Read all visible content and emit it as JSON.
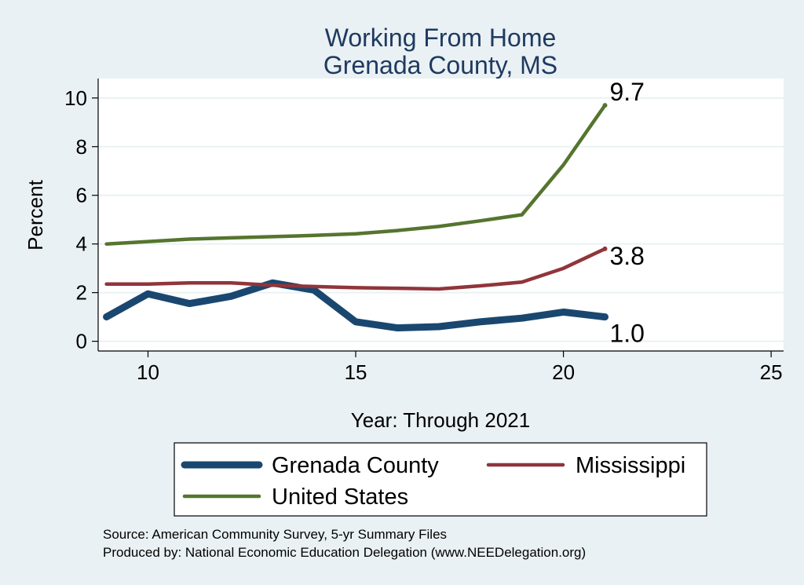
{
  "chart_data": {
    "type": "line",
    "title": [
      "Working From Home",
      "Grenada County, MS"
    ],
    "xlabel": "Year: Through 2021",
    "ylabel": "Percent",
    "xlim": [
      8.8,
      25.3
    ],
    "ylim": [
      -0.4,
      10.8
    ],
    "xticks": [
      10,
      15,
      20,
      25
    ],
    "yticks": [
      0,
      2,
      4,
      6,
      8,
      10
    ],
    "grid": true,
    "x": [
      9,
      10,
      11,
      12,
      13,
      14,
      15,
      16,
      17,
      18,
      19,
      20,
      21
    ],
    "series": [
      {
        "name": "Grenada County",
        "color": "#1a476f",
        "values": [
          1.0,
          1.95,
          1.55,
          1.85,
          2.4,
          2.1,
          0.8,
          0.55,
          0.6,
          0.8,
          0.95,
          1.2,
          1.0
        ],
        "end_label": "1.0"
      },
      {
        "name": "Mississippi",
        "color": "#90353b",
        "values": [
          2.35,
          2.35,
          2.4,
          2.4,
          2.3,
          2.25,
          2.2,
          2.18,
          2.15,
          2.28,
          2.43,
          3.0,
          3.8
        ],
        "end_label": "3.8"
      },
      {
        "name": "United States",
        "color": "#55752f",
        "values": [
          4.0,
          4.1,
          4.2,
          4.25,
          4.3,
          4.35,
          4.42,
          4.55,
          4.72,
          4.95,
          5.2,
          7.25,
          9.7
        ],
        "end_label": "9.7"
      }
    ],
    "legend": {
      "position": "bottom",
      "items": [
        "Grenada County",
        "Mississippi",
        "United States"
      ]
    },
    "notes": [
      "Source: American Community Survey, 5-yr Summary Files",
      "Produced by: National Economic Education Delegation (www.NEEDelegation.org)"
    ],
    "colors": {
      "background": "#eaf1f4",
      "plot_background": "#ffffff",
      "grid": "#eaf2f3",
      "title": "#1f3a60"
    }
  }
}
